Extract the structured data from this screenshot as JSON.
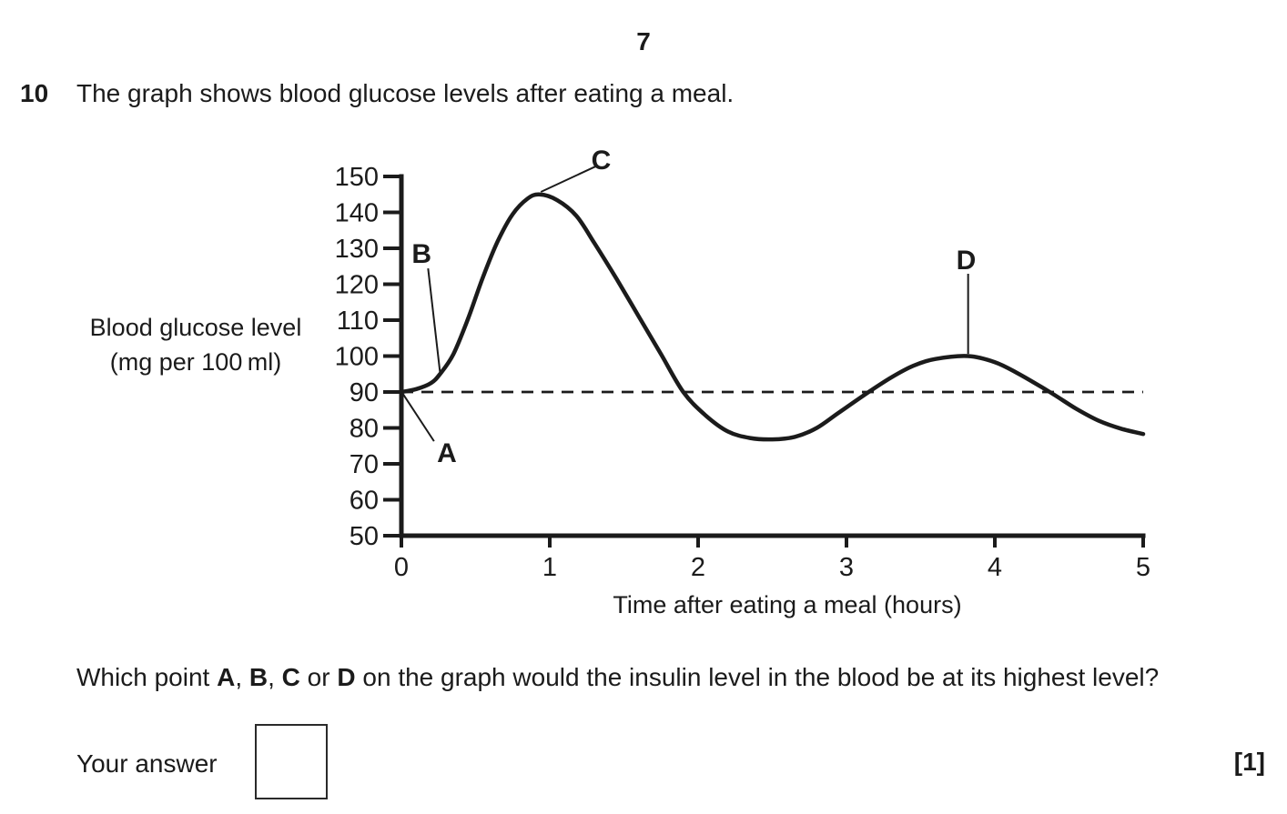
{
  "page": {
    "page_number": "7",
    "question_number": "10",
    "intro_text": "The graph shows blood glucose levels after eating a meal.",
    "question_segments": [
      {
        "text": "Which point ",
        "bold": false
      },
      {
        "text": "A",
        "bold": true
      },
      {
        "text": ", ",
        "bold": false
      },
      {
        "text": "B",
        "bold": true
      },
      {
        "text": ", ",
        "bold": false
      },
      {
        "text": "C",
        "bold": true
      },
      {
        "text": " or ",
        "bold": false
      },
      {
        "text": "D",
        "bold": true
      },
      {
        "text": " on the graph would the insulin level in the blood be at its highest level?",
        "bold": false
      }
    ],
    "answer_label": "Your answer",
    "answer_value": "",
    "marks": "[1]"
  },
  "chart_data": {
    "type": "line",
    "title": "",
    "xlabel": "Time after eating a meal (hours)",
    "ylabel": "Blood glucose level (mg per 100 ml)",
    "ylabel_lines": [
      "Blood glucose level",
      "(mg per 100 ml)"
    ],
    "xlim": [
      0,
      5
    ],
    "ylim": [
      50,
      150
    ],
    "x_ticks": [
      0,
      1,
      2,
      3,
      4,
      5
    ],
    "y_ticks": [
      50,
      60,
      70,
      80,
      90,
      100,
      110,
      120,
      130,
      140,
      150
    ],
    "grid": false,
    "legend": false,
    "baseline": {
      "value": 90,
      "style": "dashed"
    },
    "series": [
      {
        "name": "blood glucose level",
        "points": [
          [
            0.0,
            90.0
          ],
          [
            0.1,
            90.8
          ],
          [
            0.2,
            92.5
          ],
          [
            0.26,
            95.0
          ],
          [
            0.35,
            100.5
          ],
          [
            0.45,
            110.5
          ],
          [
            0.55,
            122.0
          ],
          [
            0.65,
            132.0
          ],
          [
            0.75,
            139.5
          ],
          [
            0.85,
            143.8
          ],
          [
            0.93,
            145.0
          ],
          [
            1.05,
            143.4
          ],
          [
            1.18,
            139.0
          ],
          [
            1.3,
            131.5
          ],
          [
            1.45,
            121.5
          ],
          [
            1.6,
            111.0
          ],
          [
            1.75,
            100.5
          ],
          [
            1.9,
            90.0
          ],
          [
            2.05,
            83.5
          ],
          [
            2.2,
            79.0
          ],
          [
            2.35,
            77.2
          ],
          [
            2.5,
            76.8
          ],
          [
            2.65,
            77.5
          ],
          [
            2.8,
            80.0
          ],
          [
            2.95,
            84.3
          ],
          [
            3.15,
            90.0
          ],
          [
            3.3,
            94.0
          ],
          [
            3.45,
            97.3
          ],
          [
            3.6,
            99.2
          ],
          [
            3.82,
            100.0
          ],
          [
            4.0,
            98.3
          ],
          [
            4.15,
            95.3
          ],
          [
            4.37,
            90.0
          ],
          [
            4.55,
            85.3
          ],
          [
            4.7,
            82.0
          ],
          [
            4.85,
            79.8
          ],
          [
            5.0,
            78.3
          ]
        ]
      }
    ],
    "annotations": [
      {
        "label": "A",
        "line": [
          [
            0.01,
            89.5
          ],
          [
            0.22,
            76.3
          ]
        ],
        "label_pos": [
          0.24,
          70.5
        ]
      },
      {
        "label": "B",
        "line": [
          [
            0.18,
            124.4
          ],
          [
            0.26,
            95.6
          ]
        ],
        "label_pos": [
          0.07,
          125.9
        ]
      },
      {
        "label": "C",
        "line": [
          [
            0.94,
            145.7
          ],
          [
            1.31,
            152.8
          ]
        ],
        "label_pos": [
          1.28,
          152.0
        ]
      },
      {
        "label": "D",
        "line": [
          [
            3.82,
            122.9
          ],
          [
            3.82,
            100.6
          ]
        ],
        "label_pos": [
          3.74,
          124.2
        ]
      }
    ]
  }
}
